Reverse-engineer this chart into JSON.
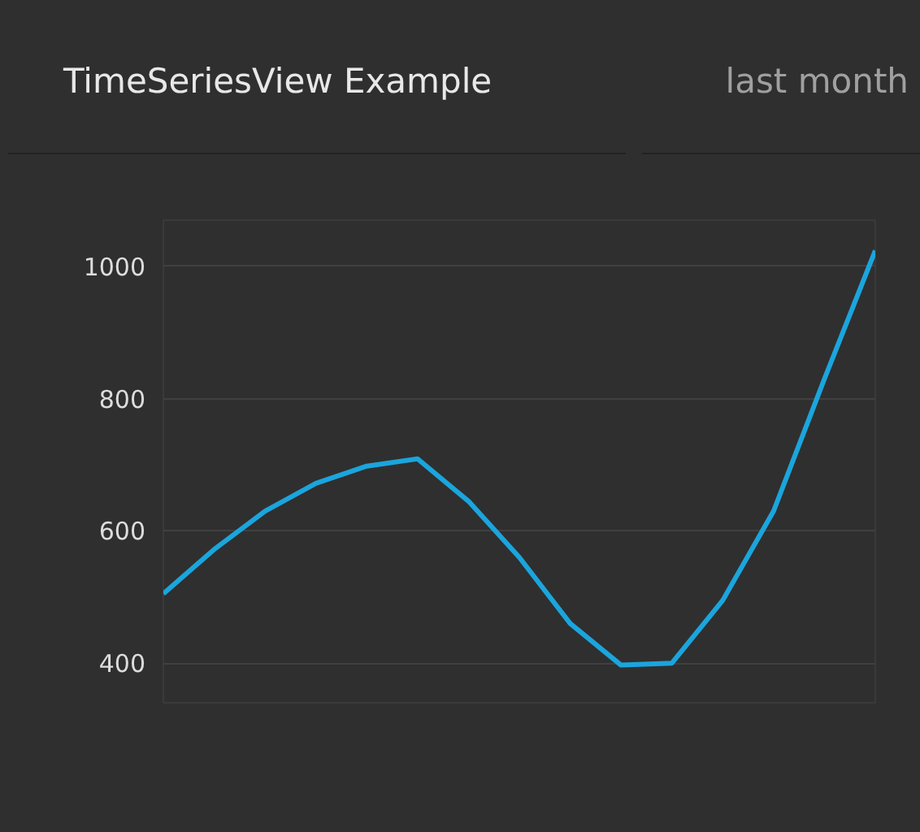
{
  "chart_data": {
    "type": "line",
    "title": "TimeSeriesView Example",
    "subtitle": "last month",
    "categories": [
      null,
      null,
      null,
      null,
      null,
      null,
      null,
      null,
      null,
      null,
      null,
      null,
      null,
      null,
      null
    ],
    "values": [
      505,
      572,
      630,
      672,
      698,
      709,
      645,
      560,
      460,
      397,
      400,
      495,
      630,
      830,
      1024
    ],
    "color": "#1ba5dd",
    "ylim": [
      340,
      1070
    ],
    "yticks": [
      400,
      600,
      800,
      1000
    ],
    "grid": "y",
    "tick_labels": "y",
    "marker": "none",
    "line_style": "solid"
  }
}
